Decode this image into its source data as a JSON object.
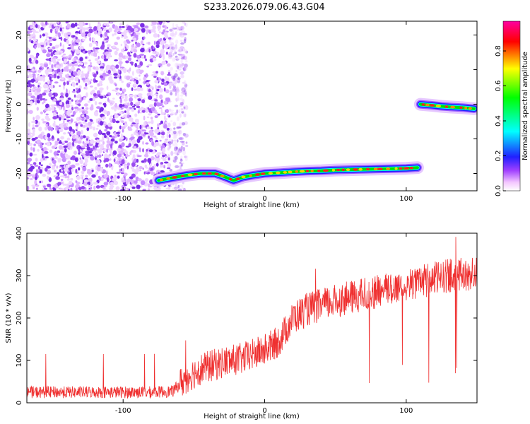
{
  "title": "S233.2026.079.06.43.G04",
  "chart_data": [
    {
      "type": "heatmap",
      "xlabel": "Height of straight line (km)",
      "ylabel": "Frequency (Hz)",
      "xlim": [
        -168,
        150
      ],
      "ylim": [
        -25,
        24
      ],
      "xticks": [
        -100,
        0,
        100
      ],
      "yticks": [
        -20,
        -10,
        0,
        10,
        20
      ],
      "colorbar": {
        "label": "Normalized spectral amplitude",
        "range": [
          0,
          0.97
        ],
        "ticks": [
          0.0,
          0.2,
          0.4,
          0.6,
          0.8
        ],
        "colors": [
          "#ffffff",
          "#f3c6ff",
          "#a040ff",
          "#2020ff",
          "#00ffff",
          "#00ff00",
          "#ffff00",
          "#ff0000",
          "#ff00a0"
        ]
      },
      "noise_region": {
        "x_range": [
          -168,
          -55
        ],
        "y_range": [
          -25,
          24
        ],
        "amplitude": 0.25
      },
      "tracks": [
        {
          "x": [
            -75,
            -62,
            -55,
            -45,
            -35,
            -28,
            -22,
            -15,
            -8,
            0,
            10,
            20,
            30,
            40,
            50,
            60,
            70,
            80,
            90,
            100,
            108
          ],
          "y": [
            -22,
            -21,
            -20.5,
            -20,
            -20,
            -21,
            -22,
            -21,
            -20.5,
            -20,
            -19.8,
            -19.5,
            -19.3,
            -19.2,
            -19,
            -18.9,
            -18.8,
            -18.7,
            -18.6,
            -18.5,
            -18.3
          ]
        },
        {
          "x": [
            110,
            118,
            125,
            132,
            140,
            148
          ],
          "y": [
            0,
            -0.3,
            -0.6,
            -0.8,
            -1.0,
            -1.3
          ]
        }
      ]
    },
    {
      "type": "line",
      "xlabel": "Height of straight line (km)",
      "ylabel": "SNR (10 * v/v)",
      "xlim": [
        -168,
        150
      ],
      "ylim": [
        0,
        400
      ],
      "xticks": [
        -100,
        0,
        100
      ],
      "yticks": [
        0,
        100,
        200,
        300,
        400
      ],
      "series": [
        {
          "color": "#ef3030",
          "x": [
            -168,
            -140,
            -110,
            -80,
            -65,
            -55,
            -45,
            -30,
            -15,
            0,
            10,
            20,
            30,
            50,
            70,
            90,
            110,
            130,
            150
          ],
          "y": [
            25,
            25,
            25,
            25,
            27,
            60,
            80,
            95,
            105,
            125,
            145,
            200,
            220,
            240,
            255,
            270,
            285,
            300,
            305
          ]
        }
      ],
      "dropouts": {
        "x_range": [
          70,
          150
        ],
        "min_y": 40
      }
    }
  ]
}
